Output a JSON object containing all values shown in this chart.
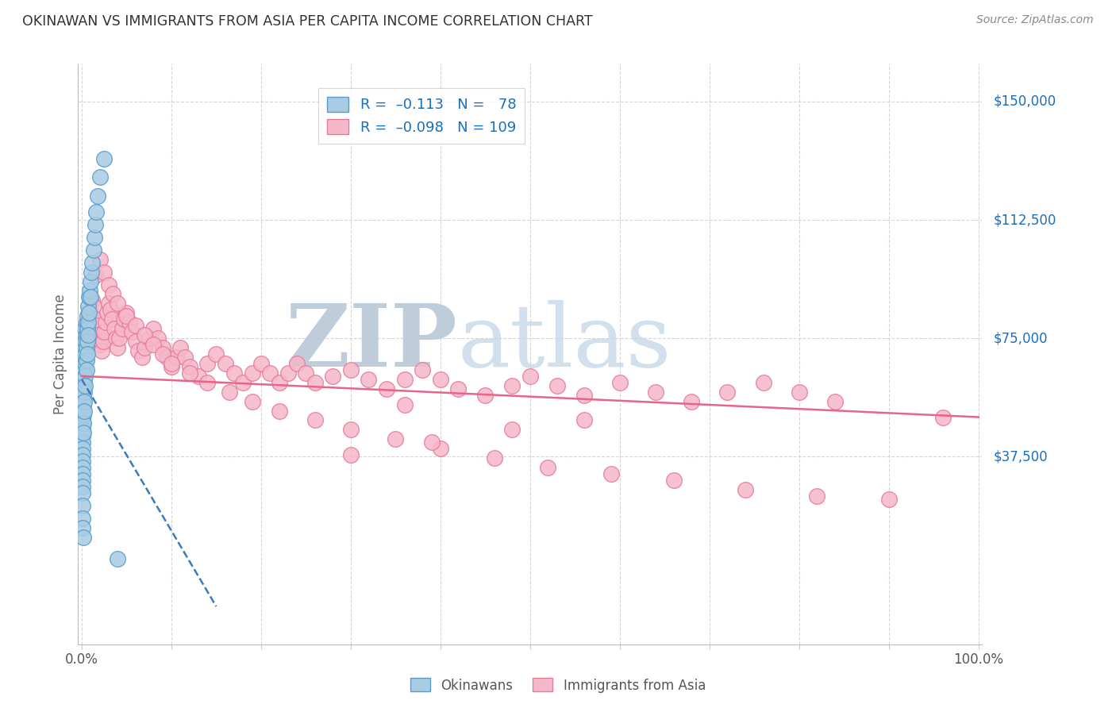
{
  "title": "OKINAWAN VS IMMIGRANTS FROM ASIA PER CAPITA INCOME CORRELATION CHART",
  "source": "Source: ZipAtlas.com",
  "ylabel": "Per Capita Income",
  "y_tick_labels": [
    "$37,500",
    "$75,000",
    "$112,500",
    "$150,000"
  ],
  "y_tick_values": [
    37500,
    75000,
    112500,
    150000
  ],
  "y_max": 162000,
  "y_min": -22000,
  "x_min": -0.004,
  "x_max": 1.004,
  "okinawan_color": "#a8cce4",
  "immigrant_color": "#f5b8c8",
  "okinawan_edge_color": "#5a9dc8",
  "immigrant_edge_color": "#e87aa0",
  "okinawan_line_color": "#3a7abf",
  "immigrant_line_color": "#e8648a",
  "background_color": "#ffffff",
  "watermark_text": "ZIPatlas",
  "watermark_color_zip": "#c0cfe0",
  "watermark_color_atlas": "#b8cce0",
  "grid_color": "#cccccc",
  "title_color": "#333333",
  "right_label_color": "#1a6fba",
  "okinawan_scatter_x": [
    0.001,
    0.001,
    0.001,
    0.001,
    0.001,
    0.001,
    0.001,
    0.001,
    0.001,
    0.001,
    0.001,
    0.001,
    0.001,
    0.001,
    0.001,
    0.001,
    0.001,
    0.001,
    0.001,
    0.001,
    0.002,
    0.002,
    0.002,
    0.002,
    0.002,
    0.002,
    0.002,
    0.002,
    0.002,
    0.002,
    0.003,
    0.003,
    0.003,
    0.003,
    0.003,
    0.003,
    0.003,
    0.003,
    0.004,
    0.004,
    0.004,
    0.004,
    0.004,
    0.004,
    0.005,
    0.005,
    0.005,
    0.005,
    0.005,
    0.006,
    0.006,
    0.006,
    0.006,
    0.007,
    0.007,
    0.007,
    0.008,
    0.008,
    0.009,
    0.01,
    0.01,
    0.011,
    0.012,
    0.013,
    0.014,
    0.015,
    0.016,
    0.018,
    0.02,
    0.025,
    0.001,
    0.001,
    0.001,
    0.04,
    0.001,
    0.002
  ],
  "okinawan_scatter_y": [
    72000,
    68000,
    65000,
    62000,
    59000,
    56000,
    54000,
    52000,
    50000,
    48000,
    46000,
    44000,
    42000,
    40000,
    38000,
    36000,
    34000,
    32000,
    30000,
    28000,
    74000,
    70000,
    66000,
    63000,
    60000,
    57000,
    54000,
    51000,
    48000,
    45000,
    76000,
    72000,
    68000,
    65000,
    62000,
    58000,
    55000,
    52000,
    78000,
    74000,
    70000,
    67000,
    63000,
    60000,
    80000,
    76000,
    72000,
    68000,
    65000,
    82000,
    78000,
    74000,
    70000,
    85000,
    80000,
    76000,
    88000,
    83000,
    90000,
    93000,
    88000,
    96000,
    99000,
    103000,
    107000,
    111000,
    115000,
    120000,
    126000,
    132000,
    26000,
    22000,
    18000,
    5000,
    15000,
    12000
  ],
  "immigrant_scatter_x": [
    0.005,
    0.007,
    0.008,
    0.01,
    0.012,
    0.013,
    0.015,
    0.017,
    0.018,
    0.02,
    0.022,
    0.024,
    0.025,
    0.027,
    0.028,
    0.03,
    0.032,
    0.034,
    0.036,
    0.038,
    0.04,
    0.042,
    0.045,
    0.047,
    0.05,
    0.053,
    0.056,
    0.06,
    0.063,
    0.067,
    0.07,
    0.075,
    0.08,
    0.085,
    0.09,
    0.095,
    0.1,
    0.105,
    0.11,
    0.115,
    0.12,
    0.13,
    0.14,
    0.15,
    0.16,
    0.17,
    0.18,
    0.19,
    0.2,
    0.21,
    0.22,
    0.23,
    0.24,
    0.25,
    0.26,
    0.28,
    0.3,
    0.32,
    0.34,
    0.36,
    0.38,
    0.4,
    0.42,
    0.45,
    0.48,
    0.5,
    0.53,
    0.56,
    0.6,
    0.64,
    0.68,
    0.72,
    0.76,
    0.8,
    0.84,
    0.96,
    0.015,
    0.02,
    0.025,
    0.03,
    0.035,
    0.04,
    0.05,
    0.06,
    0.07,
    0.08,
    0.09,
    0.1,
    0.12,
    0.14,
    0.165,
    0.19,
    0.22,
    0.26,
    0.3,
    0.35,
    0.4,
    0.46,
    0.52,
    0.59,
    0.66,
    0.74,
    0.82,
    0.9,
    0.36,
    0.56,
    0.48,
    0.39,
    0.3
  ],
  "immigrant_scatter_y": [
    78000,
    75000,
    80000,
    83000,
    87000,
    85000,
    81000,
    79000,
    76000,
    73000,
    71000,
    74000,
    77000,
    80000,
    83000,
    86000,
    84000,
    81000,
    78000,
    75000,
    72000,
    75000,
    78000,
    81000,
    83000,
    80000,
    77000,
    74000,
    71000,
    69000,
    72000,
    75000,
    78000,
    75000,
    72000,
    69000,
    66000,
    69000,
    72000,
    69000,
    66000,
    63000,
    67000,
    70000,
    67000,
    64000,
    61000,
    64000,
    67000,
    64000,
    61000,
    64000,
    67000,
    64000,
    61000,
    63000,
    65000,
    62000,
    59000,
    62000,
    65000,
    62000,
    59000,
    57000,
    60000,
    63000,
    60000,
    57000,
    61000,
    58000,
    55000,
    58000,
    61000,
    58000,
    55000,
    50000,
    95000,
    100000,
    96000,
    92000,
    89000,
    86000,
    82000,
    79000,
    76000,
    73000,
    70000,
    67000,
    64000,
    61000,
    58000,
    55000,
    52000,
    49000,
    46000,
    43000,
    40000,
    37000,
    34000,
    32000,
    30000,
    27000,
    25000,
    24000,
    54000,
    49000,
    46000,
    42000,
    38000
  ],
  "okinawan_trend_x": [
    0.0,
    0.15
  ],
  "okinawan_trend_y": [
    62000,
    -10000
  ],
  "immigrant_trend_x": [
    0.0,
    1.0
  ],
  "immigrant_trend_y": [
    63000,
    50000
  ]
}
